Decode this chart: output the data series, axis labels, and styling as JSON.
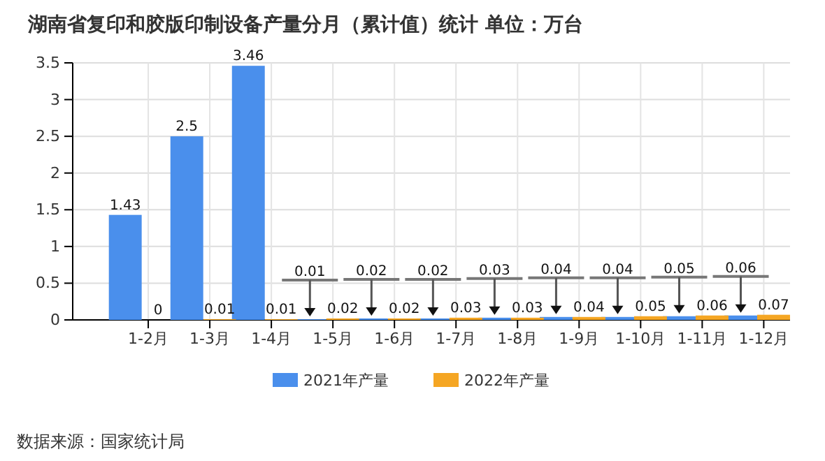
{
  "chart_data": {
    "type": "bar",
    "title": "湖南省复印和胶版印制设备产量分月（累计值）统计  单位：万台",
    "categories": [
      "1-2月",
      "1-3月",
      "1-4月",
      "1-5月",
      "1-6月",
      "1-7月",
      "1-8月",
      "1-9月",
      "1-10月",
      "1-11月",
      "1-12月"
    ],
    "series": [
      {
        "name": "2021年产量",
        "color": "#4a8fec",
        "values": [
          1.43,
          2.5,
          3.46,
          0.01,
          0.02,
          0.02,
          0.03,
          0.04,
          0.04,
          0.05,
          0.06
        ]
      },
      {
        "name": "2022年产量",
        "color": "#f5a623",
        "values": [
          0,
          0.01,
          0.01,
          0.02,
          0.02,
          0.03,
          0.03,
          0.04,
          0.05,
          0.06,
          0.07
        ]
      }
    ],
    "ylim": [
      0,
      3.5
    ],
    "yticks": [
      0,
      0.5,
      1,
      1.5,
      2,
      2.5,
      3,
      3.5
    ],
    "grid": true,
    "data_labels": true,
    "legend": "bottom",
    "annotations": [
      "数据来源：国家统计局"
    ]
  }
}
